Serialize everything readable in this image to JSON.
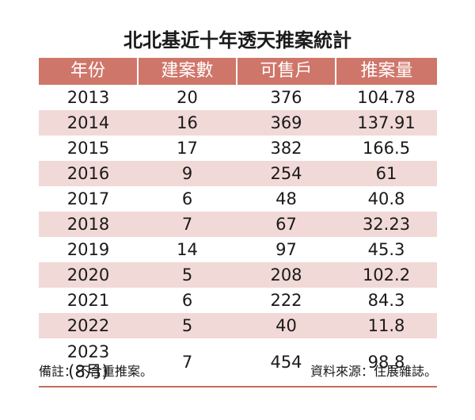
{
  "chart_data": {
    "type": "table",
    "title": "北北基近十年透天推案統計",
    "columns": [
      "年份",
      "建案數",
      "可售戶",
      "推案量"
    ],
    "rows": [
      {
        "year": "2013",
        "cases": "20",
        "units": "376",
        "volume": "104.78"
      },
      {
        "year": "2014",
        "cases": "16",
        "units": "369",
        "volume": "137.91"
      },
      {
        "year": "2015",
        "cases": "17",
        "units": "382",
        "volume": "166.5"
      },
      {
        "year": "2016",
        "cases": "9",
        "units": "254",
        "volume": "61"
      },
      {
        "year": "2017",
        "cases": "6",
        "units": "48",
        "volume": "40.8"
      },
      {
        "year": "2018",
        "cases": "7",
        "units": "67",
        "volume": "32.23"
      },
      {
        "year": "2019",
        "cases": "14",
        "units": "97",
        "volume": "45.3"
      },
      {
        "year": "2020",
        "cases": "5",
        "units": "208",
        "volume": "102.2"
      },
      {
        "year": "2021",
        "cases": "6",
        "units": "222",
        "volume": "84.3"
      },
      {
        "year": "2022",
        "cases": "5",
        "units": "40",
        "volume": "11.8"
      },
      {
        "year": "2023",
        "year_note": "(8月)",
        "cases": "7",
        "units": "454",
        "volume": "98.8"
      }
    ],
    "note": "備註：不含重推案。",
    "source": "資料來源：住展雜誌。"
  },
  "colors": {
    "header_bg": "#cf766a",
    "header_text": "#ffffff",
    "alt_row_bg": "#f1d9d7"
  }
}
